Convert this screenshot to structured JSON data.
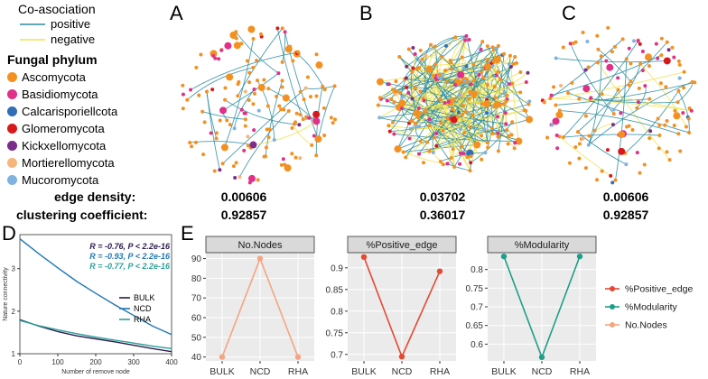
{
  "panel_labels": {
    "a": "A",
    "b": "B",
    "c": "C",
    "d": "D",
    "e": "E"
  },
  "legend": {
    "title": "Co-asociation",
    "positive_label": "positive",
    "negative_label": "negative",
    "positive_color": "#2a8ca0",
    "negative_color": "#f0e04a",
    "phylum_title": "Fungal phylum",
    "phyla": [
      {
        "name": "Ascomycota",
        "color": "#f39020"
      },
      {
        "name": "Basidiomycota",
        "color": "#e0308a"
      },
      {
        "name": "Calcarisporiellcota",
        "color": "#2f6fb5"
      },
      {
        "name": "Glomeromycota",
        "color": "#d7191c"
      },
      {
        "name": "Kickxellomycota",
        "color": "#7b2d8b"
      },
      {
        "name": "Mortierellomycota",
        "color": "#f6b57a"
      },
      {
        "name": "Mucoromycota",
        "color": "#7fb2e0"
      }
    ]
  },
  "metrics": {
    "edge_density_label": "edge density:",
    "clustering_label": "clustering coefficient:",
    "edge_density": [
      "0.00606",
      "0.03702",
      "0.00606"
    ],
    "clustering": [
      "0.92857",
      "0.36017",
      "0.92857"
    ]
  },
  "chart_data": [
    {
      "type": "line",
      "panel": "D",
      "xlabel": "Number of remove node",
      "ylabel": "Nature connectivity",
      "xlim": [
        0,
        400
      ],
      "ylim": [
        1,
        3.8
      ],
      "xticks": [
        0,
        100,
        200,
        300,
        400
      ],
      "yticks": [
        1,
        2,
        3
      ],
      "annotations": [
        {
          "text": "R = -0.76, P < 2.2e-16",
          "color": "#2d1b4e"
        },
        {
          "text": "R = -0.93, P < 2.2e-16",
          "color": "#1f77b4"
        },
        {
          "text": "R = -0.77, P < 2.2e-16",
          "color": "#2aa198"
        }
      ],
      "x": [
        0,
        50,
        100,
        150,
        200,
        250,
        300,
        350,
        400
      ],
      "series": [
        {
          "name": "BULK",
          "color": "#2d1b4e",
          "values": [
            1.8,
            1.65,
            1.52,
            1.42,
            1.35,
            1.28,
            1.2,
            1.12,
            1.05
          ]
        },
        {
          "name": "NCD",
          "color": "#1f77b4",
          "values": [
            3.7,
            3.35,
            3.02,
            2.7,
            2.42,
            2.15,
            1.9,
            1.65,
            1.45
          ]
        },
        {
          "name": "RHA",
          "color": "#2aa198",
          "values": [
            1.78,
            1.66,
            1.56,
            1.47,
            1.39,
            1.32,
            1.25,
            1.18,
            1.12
          ]
        }
      ]
    },
    {
      "type": "line",
      "panel": "E",
      "categories": [
        "BULK",
        "NCD",
        "RHA"
      ],
      "facets": [
        {
          "title": "No.Nodes",
          "color": "#f4a582",
          "values": [
            40,
            90,
            40
          ],
          "ylim": [
            38,
            93
          ],
          "yticks": [
            40,
            50,
            60,
            70,
            80,
            90
          ]
        },
        {
          "title": "%Positive_edge",
          "color": "#e34a33",
          "values": [
            0.925,
            0.695,
            0.892
          ],
          "ylim": [
            0.685,
            0.935
          ],
          "yticks": [
            0.7,
            0.75,
            0.8,
            0.85,
            0.9
          ]
        },
        {
          "title": "%Modularity",
          "color": "#1f9e89",
          "values": [
            0.835,
            0.565,
            0.835
          ],
          "ylim": [
            0.555,
            0.845
          ],
          "yticks": [
            0.6,
            0.65,
            0.7,
            0.75,
            0.8
          ]
        }
      ],
      "legend": [
        {
          "name": "%Positive_edge",
          "color": "#e34a33"
        },
        {
          "name": "%Modularity",
          "color": "#1f9e89"
        },
        {
          "name": "No.Nodes",
          "color": "#f4a582"
        }
      ]
    }
  ]
}
